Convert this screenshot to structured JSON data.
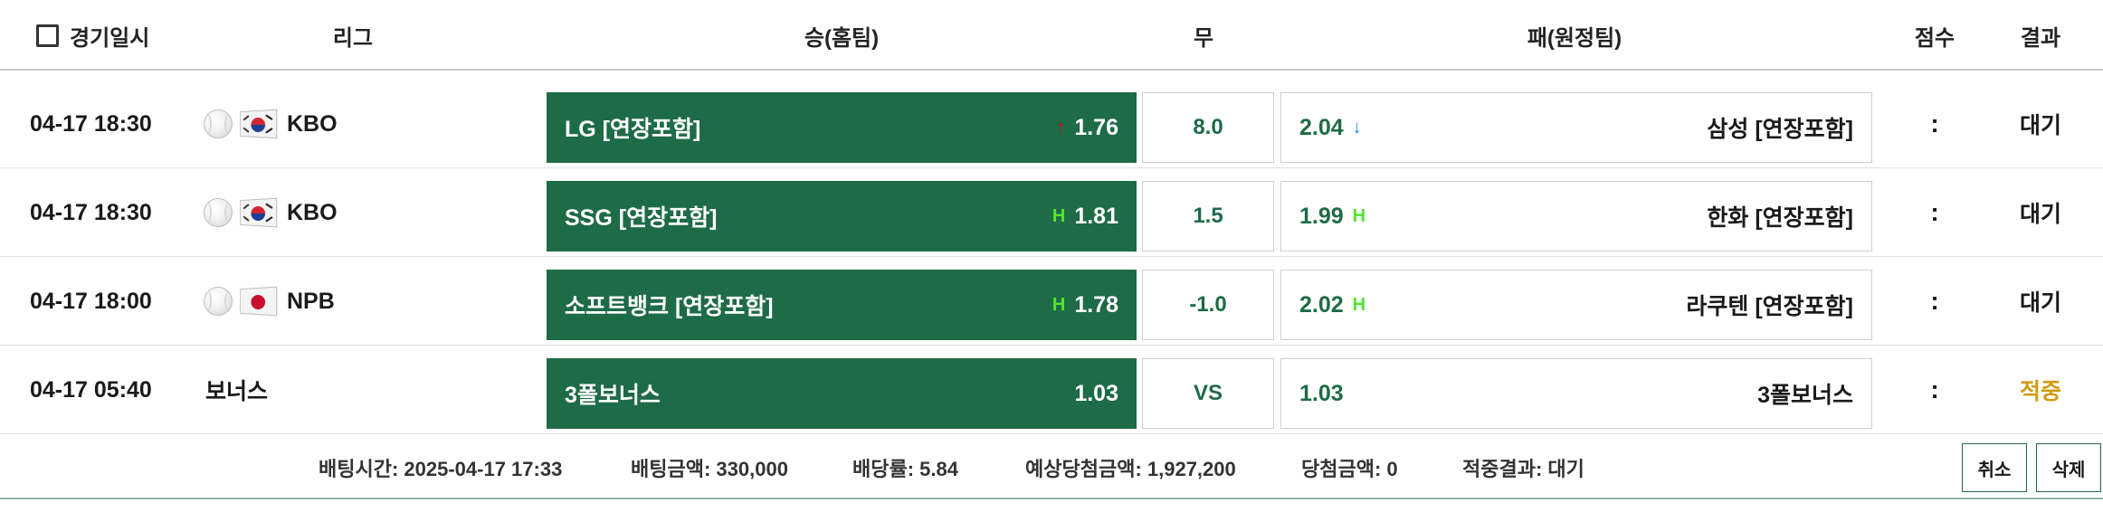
{
  "header": {
    "date": "경기일시",
    "league": "리그",
    "home": "승(홈팀)",
    "draw": "무",
    "away": "패(원정팀)",
    "score": "점수",
    "result": "결과"
  },
  "games": [
    {
      "date": "04-17 18:30",
      "league_icon": "baseball-icon",
      "flag": "south-korea-flag-icon",
      "league": "KBO",
      "home_team": "LG [연장포함]",
      "home_indicator": "↑",
      "home_indicator_icon": "arrow-up-icon",
      "home_odds": "1.76",
      "draw": "8.0",
      "away_odds": "2.04",
      "away_indicator": "↓",
      "away_indicator_icon": "arrow-down-icon",
      "away_team": "삼성 [연장포함]",
      "score": ":",
      "result": "대기"
    },
    {
      "date": "04-17 18:30",
      "league_icon": "baseball-icon",
      "flag": "south-korea-flag-icon",
      "league": "KBO",
      "home_team": "SSG [연장포함]",
      "home_indicator": "H",
      "home_indicator_icon": "handicap-icon",
      "home_odds": "1.81",
      "draw": "1.5",
      "away_odds": "1.99",
      "away_indicator": "H",
      "away_indicator_icon": "handicap-icon",
      "away_team": "한화 [연장포함]",
      "score": ":",
      "result": "대기"
    },
    {
      "date": "04-17 18:00",
      "league_icon": "baseball-icon",
      "flag": "japan-flag-icon",
      "league": "NPB",
      "home_team": "소프트뱅크 [연장포함]",
      "home_indicator": "H",
      "home_indicator_icon": "handicap-icon",
      "home_odds": "1.78",
      "draw": "-1.0",
      "away_odds": "2.02",
      "away_indicator": "H",
      "away_indicator_icon": "handicap-icon",
      "away_team": "라쿠텐 [연장포함]",
      "score": ":",
      "result": "대기"
    },
    {
      "date": "04-17 05:40",
      "league": "보너스",
      "home_team": "3폴보너스",
      "home_odds": "1.03",
      "draw": "VS",
      "away_odds": "1.03",
      "away_team": "3폴보너스",
      "score": ":",
      "result": "적중"
    }
  ],
  "footer": {
    "bet_time": "배팅시간: 2025-04-17 17:33",
    "bet_amount": "배팅금액: 330,000",
    "odds": "배당률: 5.84",
    "expected_win": "예상당첨금액: 1,927,200",
    "win_amount": "당첨금액: 0",
    "hit_result": "적중결과: 대기",
    "cancel": "취소",
    "delete": "삭제"
  },
  "colors": {
    "home_bg": "#1e6b47",
    "odds_text": "#1e6b47",
    "arrow_up": "#d80b0b",
    "arrow_down": "#1a8fe0",
    "handicap": "#52e62f",
    "win_result": "#d49a14"
  }
}
